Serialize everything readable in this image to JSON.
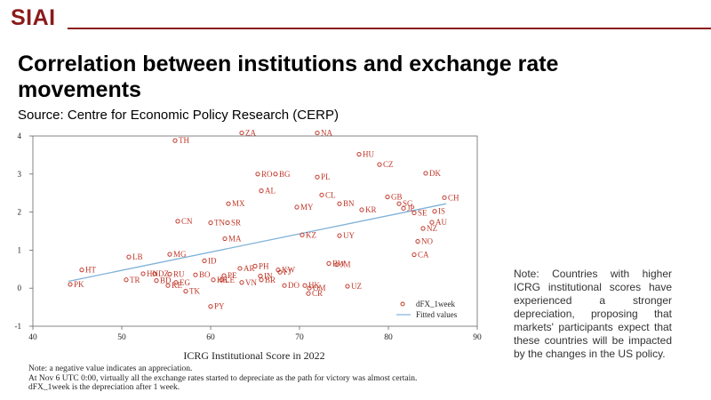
{
  "brand": {
    "logo_text": "SIAI"
  },
  "header": {
    "title": "Correlation between institutions and exchange rate movements",
    "source": "Source: Centre for Economic Policy Research (CERP)"
  },
  "side_note": "Note: Countries with higher ICRG institutional scores have experienced a stronger depreciation, proposing that markets' participants expect that these countries will be impacted by the changes in the US policy.",
  "footnotes": [
    "Note: a negative value indicates an appreciation.",
    "At Nov 6 UTC 0:00, virtually all the exchange rates started to depreciate as the path for victory was almost certain.",
    "dFX_1week is the depreciation after 1 week."
  ],
  "colors": {
    "points": "#c0392b",
    "labels": "#c0392b",
    "fit": "#7fb2d8",
    "brand": "#8b1a1a"
  },
  "chart_data": {
    "type": "scatter",
    "xlabel": "ICRG Institutional Score in 2022",
    "ylabel": "",
    "xlim": [
      40,
      90
    ],
    "ylim": [
      -1,
      4
    ],
    "xticks": [
      40,
      50,
      60,
      70,
      80,
      90
    ],
    "yticks": [
      -1,
      0,
      1,
      2,
      3,
      4
    ],
    "grid": false,
    "legend": {
      "position": "bottom-right",
      "entries": [
        "dFX_1week",
        "Fitted values"
      ]
    },
    "fit_line": {
      "x": [
        44,
        86.5
      ],
      "y": [
        0.18,
        2.22
      ]
    },
    "points": [
      {
        "label": "ZA",
        "x": 63.5,
        "y": 4.08
      },
      {
        "label": "NA",
        "x": 72,
        "y": 4.08
      },
      {
        "label": "TH",
        "x": 56,
        "y": 3.88
      },
      {
        "label": "HU",
        "x": 76.7,
        "y": 3.52
      },
      {
        "label": "CZ",
        "x": 79,
        "y": 3.25
      },
      {
        "label": "DK",
        "x": 84.2,
        "y": 3.02
      },
      {
        "label": "RO",
        "x": 65.3,
        "y": 3.0
      },
      {
        "label": "BG",
        "x": 67.3,
        "y": 3.0
      },
      {
        "label": "PL",
        "x": 72,
        "y": 2.92
      },
      {
        "label": "AL",
        "x": 65.7,
        "y": 2.56
      },
      {
        "label": "CL",
        "x": 72.5,
        "y": 2.45
      },
      {
        "label": "GB",
        "x": 79.9,
        "y": 2.4
      },
      {
        "label": "CH",
        "x": 86.3,
        "y": 2.38
      },
      {
        "label": "MX",
        "x": 62,
        "y": 2.22
      },
      {
        "label": "BN",
        "x": 74.5,
        "y": 2.22
      },
      {
        "label": "SG",
        "x": 81.2,
        "y": 2.22
      },
      {
        "label": "MY",
        "x": 69.7,
        "y": 2.13
      },
      {
        "label": "JP",
        "x": 81.7,
        "y": 2.1
      },
      {
        "label": "KR",
        "x": 77,
        "y": 2.06
      },
      {
        "label": "IS",
        "x": 85.2,
        "y": 2.02
      },
      {
        "label": "SE",
        "x": 82.9,
        "y": 1.98
      },
      {
        "label": "CN",
        "x": 56.3,
        "y": 1.76
      },
      {
        "label": "TN",
        "x": 60,
        "y": 1.72
      },
      {
        "label": "SR",
        "x": 61.9,
        "y": 1.72
      },
      {
        "label": "AU",
        "x": 84.9,
        "y": 1.73
      },
      {
        "label": "NZ",
        "x": 83.9,
        "y": 1.57
      },
      {
        "label": "KZ",
        "x": 70.3,
        "y": 1.4
      },
      {
        "label": "UY",
        "x": 74.5,
        "y": 1.38
      },
      {
        "label": "MA",
        "x": 61.6,
        "y": 1.3
      },
      {
        "label": "NO",
        "x": 83.3,
        "y": 1.23
      },
      {
        "label": "MG",
        "x": 55.4,
        "y": 0.89
      },
      {
        "label": "CA",
        "x": 82.9,
        "y": 0.88
      },
      {
        "label": "LB",
        "x": 50.8,
        "y": 0.82
      },
      {
        "label": "ID",
        "x": 59.3,
        "y": 0.72
      },
      {
        "label": "BW",
        "x": 73.3,
        "y": 0.65
      },
      {
        "label": "JM",
        "x": 74.2,
        "y": 0.62
      },
      {
        "label": "PH",
        "x": 65,
        "y": 0.58
      },
      {
        "label": "AR",
        "x": 63.3,
        "y": 0.52
      },
      {
        "label": "KW",
        "x": 67.6,
        "y": 0.48
      },
      {
        "label": "HT",
        "x": 45.5,
        "y": 0.48
      },
      {
        "label": "FJ",
        "x": 67.8,
        "y": 0.42
      },
      {
        "label": "HN",
        "x": 52.4,
        "y": 0.38
      },
      {
        "label": "DZ",
        "x": 53.7,
        "y": 0.38
      },
      {
        "label": "RU",
        "x": 55.4,
        "y": 0.37
      },
      {
        "label": "BO",
        "x": 58.3,
        "y": 0.35
      },
      {
        "label": "PE",
        "x": 61.5,
        "y": 0.33
      },
      {
        "label": "IN",
        "x": 65.6,
        "y": 0.32
      },
      {
        "label": "BR",
        "x": 65.7,
        "y": 0.22
      },
      {
        "label": "TR",
        "x": 50.5,
        "y": 0.22
      },
      {
        "label": "BD",
        "x": 53.9,
        "y": 0.2
      },
      {
        "label": "HK",
        "x": 60.3,
        "y": 0.22
      },
      {
        "label": "LE",
        "x": 61.2,
        "y": 0.22
      },
      {
        "label": "VN",
        "x": 63.5,
        "y": 0.15
      },
      {
        "label": "EG",
        "x": 56.1,
        "y": 0.15
      },
      {
        "label": "PK",
        "x": 44.2,
        "y": 0.1
      },
      {
        "label": "KE",
        "x": 55.2,
        "y": 0.07
      },
      {
        "label": "DO",
        "x": 68.3,
        "y": 0.07
      },
      {
        "label": "HK",
        "x": 70.6,
        "y": 0.07
      },
      {
        "label": "UZ",
        "x": 75.4,
        "y": 0.05
      },
      {
        "label": "OM",
        "x": 71.1,
        "y": 0.0
      },
      {
        "label": "TK",
        "x": 57.2,
        "y": -0.08
      },
      {
        "label": "CR",
        "x": 71,
        "y": -0.14
      },
      {
        "label": "PY",
        "x": 60,
        "y": -0.48
      }
    ]
  }
}
